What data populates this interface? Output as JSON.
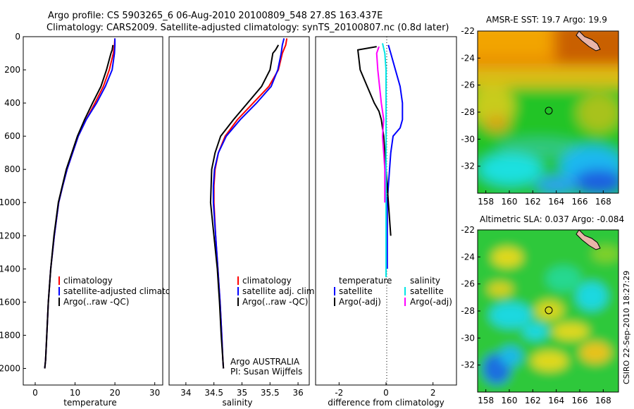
{
  "header": {
    "line1": "Argo profile: CS 5903265_6 06-Aug-2010 20100809_548 27.8S 163.437E",
    "line2": "Climatology: CARS2009. Satellite-adjusted climatology: synTS_20100807.nc (0.8d later)"
  },
  "side_caption": "CSIRO 22-Sep-2010 18:27:29",
  "colors": {
    "climatology": "#ff0000",
    "satellite": "#0000ff",
    "argo": "#000000",
    "satellite_diff": "#00e5e5",
    "argo_adj_diff": "#ff00ff"
  },
  "chart_data": [
    {
      "type": "line",
      "xlabel": "temperature",
      "ylabel": "",
      "xlim": [
        -3,
        32
      ],
      "ylim": [
        2100,
        0
      ],
      "y_reversed": true,
      "xticks": [
        0,
        10,
        20,
        30
      ],
      "yticks": [
        0,
        200,
        400,
        600,
        800,
        1000,
        1200,
        1400,
        1600,
        1800,
        2000
      ],
      "legend": {
        "position": "bottom-right",
        "entries": [
          {
            "label": "climatology",
            "color": "#ff0000"
          },
          {
            "label": "satellite-adjusted climatology",
            "color": "#0000ff"
          },
          {
            "label": "Argo(..raw -QC)",
            "color": "#000000"
          }
        ]
      },
      "series": [
        {
          "name": "climatology",
          "color": "#ff0000",
          "x": [
            20.0,
            19.9,
            19.6,
            18.6,
            17.1,
            15.0,
            12.8,
            10.8,
            9.4,
            8.0,
            6.9,
            5.9,
            4.8,
            3.9,
            3.3,
            2.9,
            2.6,
            2.4
          ],
          "y": [
            10,
            50,
            100,
            200,
            300,
            400,
            500,
            600,
            700,
            800,
            900,
            1000,
            1200,
            1400,
            1600,
            1800,
            1950,
            2000
          ]
        },
        {
          "name": "satellite-adjusted climatology",
          "color": "#0000ff",
          "x": [
            20.0,
            20.0,
            19.9,
            19.3,
            17.6,
            15.4,
            12.8,
            10.8,
            9.4,
            8.0,
            6.9,
            5.9,
            4.8,
            3.9,
            3.3,
            2.9,
            2.6,
            2.4
          ],
          "y": [
            10,
            50,
            100,
            200,
            300,
            400,
            500,
            600,
            700,
            800,
            900,
            1000,
            1200,
            1400,
            1600,
            1800,
            1950,
            2000
          ]
        },
        {
          "name": "Argo(..raw -QC)",
          "color": "#000000",
          "x": [
            19.5,
            19.3,
            19.0,
            17.9,
            16.5,
            14.4,
            12.4,
            10.6,
            9.2,
            7.8,
            6.8,
            5.8,
            4.7,
            3.9,
            3.3,
            2.9,
            2.6,
            2.4
          ],
          "y": [
            50,
            80,
            100,
            200,
            300,
            400,
            500,
            600,
            700,
            800,
            900,
            1000,
            1200,
            1400,
            1600,
            1800,
            1950,
            2000
          ]
        }
      ]
    },
    {
      "type": "line",
      "xlabel": "salinity",
      "ylabel": "",
      "xlim": [
        33.7,
        36.2
      ],
      "ylim": [
        2100,
        0
      ],
      "y_reversed": true,
      "xticks": [
        34,
        34.5,
        35,
        35.5,
        36
      ],
      "legend": {
        "position": "bottom-right",
        "entries": [
          {
            "label": "climatology",
            "color": "#ff0000"
          },
          {
            "label": "satellite adj. clim.",
            "color": "#0000ff"
          },
          {
            "label": "Argo(..raw -QC)",
            "color": "#000000"
          }
        ]
      },
      "annotation": [
        "Argo AUSTRALIA",
        "PI: Susan Wijffels"
      ],
      "series": [
        {
          "name": "climatology",
          "color": "#ff0000",
          "x": [
            35.8,
            35.78,
            35.72,
            35.65,
            35.48,
            35.2,
            34.92,
            34.7,
            34.58,
            34.52,
            34.5,
            34.5,
            34.53,
            34.57,
            34.61,
            34.64,
            34.66,
            34.67
          ],
          "y": [
            10,
            50,
            100,
            200,
            300,
            400,
            500,
            600,
            700,
            800,
            900,
            1000,
            1200,
            1400,
            1600,
            1800,
            1950,
            2000
          ]
        },
        {
          "name": "satellite adj. clim.",
          "color": "#0000ff",
          "x": [
            35.75,
            35.72,
            35.7,
            35.64,
            35.52,
            35.26,
            34.97,
            34.72,
            34.58,
            34.51,
            34.49,
            34.49,
            34.53,
            34.57,
            34.61,
            34.64,
            34.66,
            34.67
          ],
          "y": [
            10,
            50,
            100,
            200,
            300,
            400,
            500,
            600,
            700,
            800,
            900,
            1000,
            1200,
            1400,
            1600,
            1800,
            1950,
            2000
          ]
        },
        {
          "name": "Argo(..raw -QC)",
          "color": "#000000",
          "x": [
            35.65,
            35.6,
            35.55,
            35.5,
            35.35,
            35.1,
            34.85,
            34.62,
            34.52,
            34.46,
            34.45,
            34.44,
            34.5,
            34.56,
            34.6,
            34.63,
            34.66,
            34.67
          ],
          "y": [
            50,
            80,
            100,
            200,
            300,
            400,
            500,
            600,
            700,
            800,
            900,
            1000,
            1200,
            1400,
            1600,
            1800,
            1950,
            2000
          ]
        }
      ]
    },
    {
      "type": "line",
      "xlabel": "difference from climatology",
      "ylabel": "",
      "xlim": [
        -3,
        3
      ],
      "ylim": [
        2100,
        0
      ],
      "y_reversed": true,
      "xticks": [
        -2,
        0,
        2
      ],
      "legend": {
        "position": "bottom",
        "groups": [
          {
            "title": "temperature",
            "entries": [
              {
                "label": "satellite",
                "color": "#0000ff"
              },
              {
                "label": "Argo(-adj)",
                "color": "#000000"
              }
            ]
          },
          {
            "title": "salinity",
            "entries": [
              {
                "label": "satellite",
                "color": "#00e5e5"
              },
              {
                "label": "Argo(-adj)",
                "color": "#ff00ff"
              }
            ]
          }
        ]
      },
      "series": [
        {
          "name": "temperature satellite",
          "color": "#0000ff",
          "x": [
            0.1,
            0.2,
            0.4,
            0.6,
            0.7,
            0.7,
            0.6,
            0.3,
            0.2,
            0.15,
            0.1,
            0.05,
            0.05,
            0.05
          ],
          "y": [
            50,
            100,
            200,
            300,
            400,
            500,
            550,
            600,
            700,
            800,
            900,
            1000,
            1200,
            1400
          ]
        },
        {
          "name": "temperature Argo(-adj)",
          "color": "#000000",
          "x": [
            -0.4,
            -1.2,
            -1.1,
            -0.8,
            -0.5,
            -0.3,
            -0.2,
            -0.1,
            -0.05,
            0.0,
            0.05,
            0.1,
            0.2
          ],
          "y": [
            60,
            80,
            200,
            300,
            400,
            450,
            500,
            600,
            700,
            800,
            900,
            1000,
            1200
          ]
        },
        {
          "name": "salinity satellite",
          "color": "#00e5e5",
          "x": [
            -0.15,
            -0.05,
            0.0,
            0.0,
            0.0,
            0.0,
            0.0,
            0.0,
            0.0,
            0.0,
            0.0,
            0.0,
            0.0
          ],
          "y": [
            40,
            100,
            200,
            300,
            400,
            500,
            600,
            800,
            1000,
            1200,
            1300,
            1400,
            1450
          ]
        },
        {
          "name": "salinity Argo(-adj)",
          "color": "#ff00ff",
          "x": [
            -0.3,
            -0.4,
            -0.35,
            -0.2,
            -0.1,
            -0.15,
            -0.1,
            -0.05,
            -0.05,
            -0.05
          ],
          "y": [
            60,
            100,
            200,
            400,
            500,
            600,
            700,
            800,
            900,
            1000
          ]
        }
      ]
    },
    {
      "type": "heatmap",
      "title": "AMSR-E SST: 19.7 Argo: 19.9",
      "xlim": [
        157.3,
        169.3
      ],
      "ylim": [
        -34,
        -22
      ],
      "xticks": [
        158,
        160,
        162,
        164,
        166,
        168
      ],
      "yticks": [
        -22,
        -24,
        -26,
        -28,
        -30,
        -32
      ],
      "marker": {
        "lon": 163.437,
        "lat": -27.8
      }
    },
    {
      "type": "heatmap",
      "title": "Altimetric SLA: 0.037 Argo: -0.084",
      "xlim": [
        157.3,
        169.3
      ],
      "ylim": [
        -34,
        -22
      ],
      "xticks": [
        158,
        160,
        162,
        164,
        166,
        168
      ],
      "yticks": [
        -22,
        -24,
        -26,
        -28,
        -30,
        -32
      ],
      "marker": {
        "lon": 163.437,
        "lat": -27.8
      }
    }
  ]
}
